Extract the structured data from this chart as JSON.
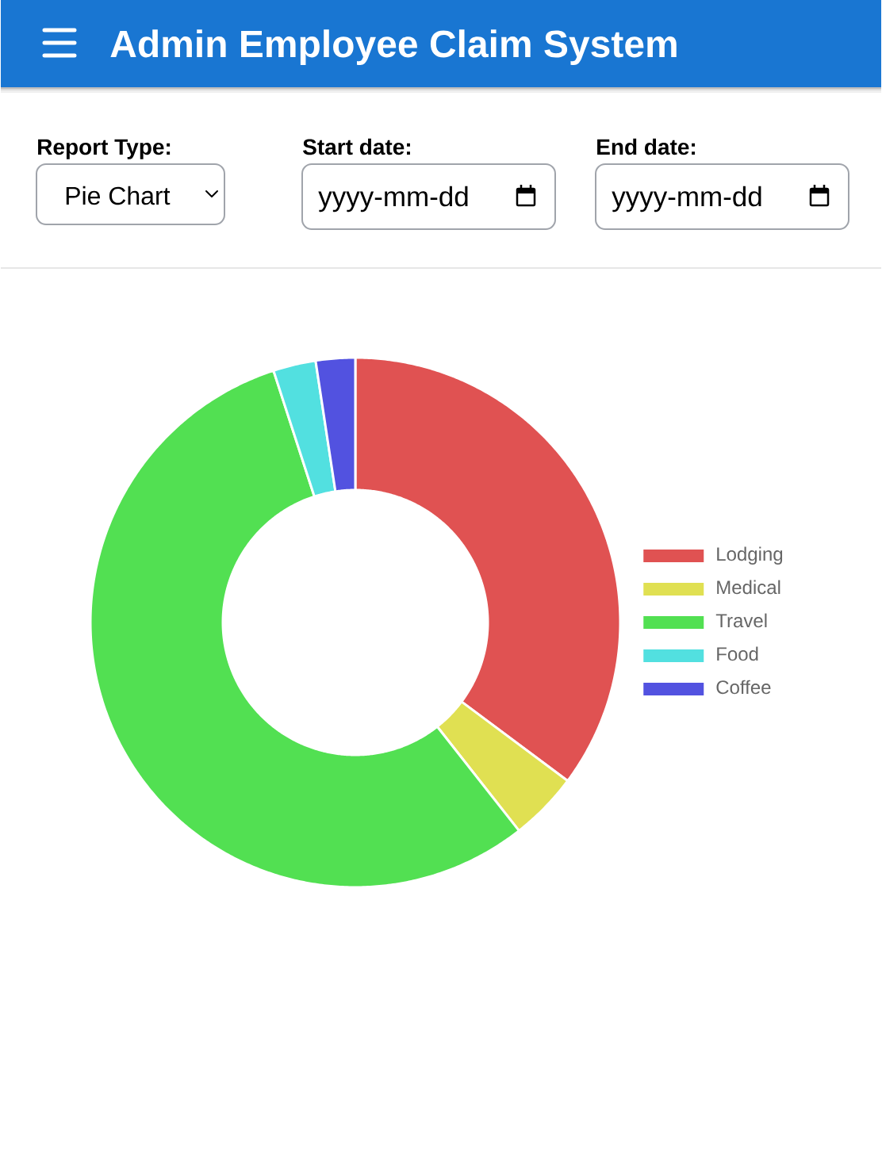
{
  "chart_data": {
    "type": "donut",
    "title": "Admin Employee Claim System",
    "categories": [
      "Lodging",
      "Medical",
      "Travel",
      "Food",
      "Coffee"
    ],
    "values": [
      35.2,
      4.2,
      55.6,
      2.6,
      2.4
    ],
    "colors": [
      "#e05252",
      "#e0e052",
      "#52e052",
      "#52e0e0",
      "#5252e0"
    ],
    "legend": "right",
    "annotations": [
      "Report Type:",
      "Pie Chart",
      "Start date:",
      "yyyy-mm-dd",
      "End date:",
      "yyyy-mm-dd"
    ]
  }
}
